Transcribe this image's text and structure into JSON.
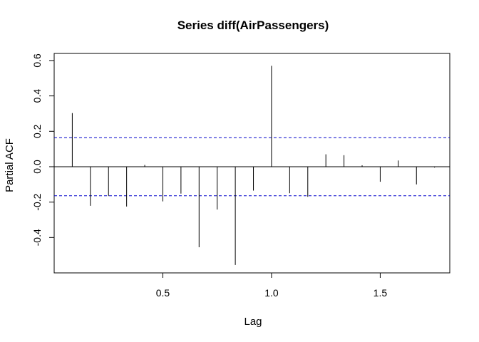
{
  "chart_data": {
    "type": "bar",
    "title": "Series  diff(AirPassengers)",
    "xlabel": "Lag",
    "ylabel": "Partial ACF",
    "xlim": [
      0.0,
      1.82
    ],
    "ylim": [
      -0.6,
      0.64
    ],
    "x_ticks": [
      0.5,
      1.0,
      1.5
    ],
    "x_tick_labels": [
      "0.5",
      "1.0",
      "1.5"
    ],
    "y_ticks": [
      -0.4,
      -0.2,
      0.0,
      0.2,
      0.4,
      0.6
    ],
    "y_tick_labels": [
      "-0.4",
      "-0.2",
      "0.0",
      "0.2",
      "0.4",
      "0.6"
    ],
    "confidence_bound": 0.164,
    "series": [
      {
        "x": [
          0.0833,
          0.1667,
          0.25,
          0.3333,
          0.4167,
          0.5,
          0.5833,
          0.6667,
          0.75,
          0.8333,
          0.9167,
          1.0,
          1.0833,
          1.1667,
          1.25,
          1.3333,
          1.4167,
          1.5,
          1.5833,
          1.6667,
          1.75
        ],
        "values": [
          0.303,
          -0.221,
          -0.166,
          -0.225,
          0.01,
          -0.196,
          -0.152,
          -0.455,
          -0.242,
          -0.555,
          -0.135,
          0.57,
          -0.15,
          -0.17,
          0.07,
          0.065,
          0.008,
          -0.085,
          0.035,
          -0.1,
          -0.005
        ]
      }
    ],
    "colors": {
      "spike": "#000000",
      "bound": "#0000cc",
      "zero": "#000000"
    }
  }
}
